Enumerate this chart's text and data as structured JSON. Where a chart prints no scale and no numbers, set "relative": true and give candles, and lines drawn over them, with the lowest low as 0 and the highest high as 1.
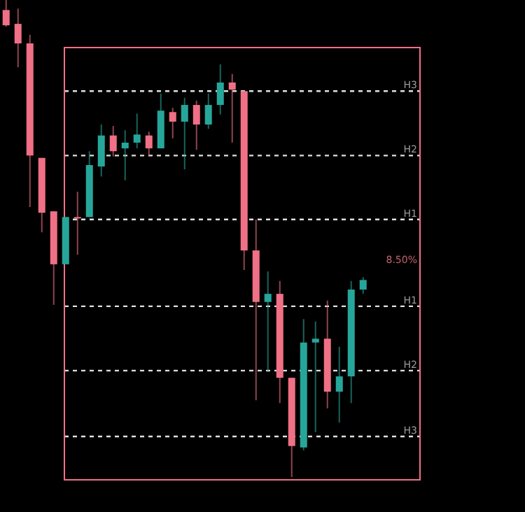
{
  "chart_data": {
    "type": "candlestick",
    "relative": true,
    "categories": [
      null,
      null,
      null,
      null,
      null,
      null,
      null,
      null,
      null,
      null,
      null,
      null,
      null,
      null,
      null,
      null,
      null,
      null,
      null,
      null,
      null,
      null,
      null,
      null,
      null,
      null,
      null,
      null,
      null,
      null,
      null
    ],
    "ohlc": [
      [
        0.979,
        1.0,
        0.944,
        0.947
      ],
      [
        0.95,
        0.982,
        0.859,
        0.909
      ],
      [
        0.909,
        0.927,
        0.566,
        0.674
      ],
      [
        0.669,
        0.669,
        0.513,
        0.554
      ],
      [
        0.557,
        0.557,
        0.361,
        0.446
      ],
      [
        0.446,
        0.545,
        0.446,
        0.545
      ],
      [
        0.545,
        0.598,
        0.466,
        0.543
      ],
      [
        0.545,
        0.683,
        0.545,
        0.654
      ],
      [
        0.651,
        0.739,
        0.63,
        0.716
      ],
      [
        0.716,
        0.736,
        0.672,
        0.683
      ],
      [
        0.689,
        0.727,
        0.622,
        0.701
      ],
      [
        0.701,
        0.762,
        0.689,
        0.718
      ],
      [
        0.716,
        0.724,
        0.672,
        0.689
      ],
      [
        0.689,
        0.804,
        0.689,
        0.768
      ],
      [
        0.765,
        0.774,
        0.71,
        0.745
      ],
      [
        0.745,
        0.795,
        0.645,
        0.78
      ],
      [
        0.78,
        0.789,
        0.686,
        0.739
      ],
      [
        0.739,
        0.804,
        0.73,
        0.78
      ],
      [
        0.78,
        0.865,
        0.76,
        0.827
      ],
      [
        0.827,
        0.845,
        0.701,
        0.812
      ],
      [
        0.809,
        0.809,
        0.434,
        0.475
      ],
      [
        0.475,
        0.54,
        0.161,
        0.367
      ],
      [
        0.367,
        0.431,
        0.22,
        0.384
      ],
      [
        0.384,
        0.411,
        0.155,
        0.208
      ],
      [
        0.208,
        0.208,
        0.0,
        0.065
      ],
      [
        0.062,
        0.331,
        0.056,
        0.282
      ],
      [
        0.282,
        0.326,
        0.094,
        0.29
      ],
      [
        0.29,
        0.37,
        0.144,
        0.179
      ],
      [
        0.179,
        0.273,
        0.114,
        0.211
      ],
      [
        0.211,
        0.411,
        0.155,
        0.393
      ],
      [
        0.393,
        0.419,
        0.384,
        0.413
      ]
    ],
    "colors": [
      "#f07085",
      "#f07085",
      "#f07085",
      "#f07085",
      "#f07085",
      "#26a69a",
      "#f07085",
      "#26a69a",
      "#26a69a",
      "#f07085",
      "#26a69a",
      "#26a69a",
      "#f07085",
      "#26a69a",
      "#f07085",
      "#26a69a",
      "#f07085",
      "#26a69a",
      "#26a69a",
      "#f07085",
      "#f07085",
      "#f07085",
      "#26a69a",
      "#f07085",
      "#f07085",
      "#26a69a",
      "#26a69a",
      "#f07085",
      "#26a69a",
      "#26a69a",
      "#26a69a"
    ],
    "ref_lines": [
      {
        "axis": "y",
        "value": 0.809,
        "label": "H3",
        "color": "#e0e0e0",
        "line_style": "dashed"
      },
      {
        "axis": "y",
        "value": 0.674,
        "label": "H2",
        "color": "#e0e0e0",
        "line_style": "dashed"
      },
      {
        "axis": "y",
        "value": 0.54,
        "label": "H1",
        "color": "#e0e0e0",
        "line_style": "dashed"
      },
      {
        "axis": "y",
        "value": 0.358,
        "label": "H1",
        "color": "#e0e0e0",
        "line_style": "dashed"
      },
      {
        "axis": "y",
        "value": 0.223,
        "label": "H2",
        "color": "#e0e0e0",
        "line_style": "dashed"
      },
      {
        "axis": "y",
        "value": 0.085,
        "label": "H3",
        "color": "#e0e0e0",
        "line_style": "dashed"
      }
    ],
    "annotations": [
      "8.50%"
    ]
  }
}
